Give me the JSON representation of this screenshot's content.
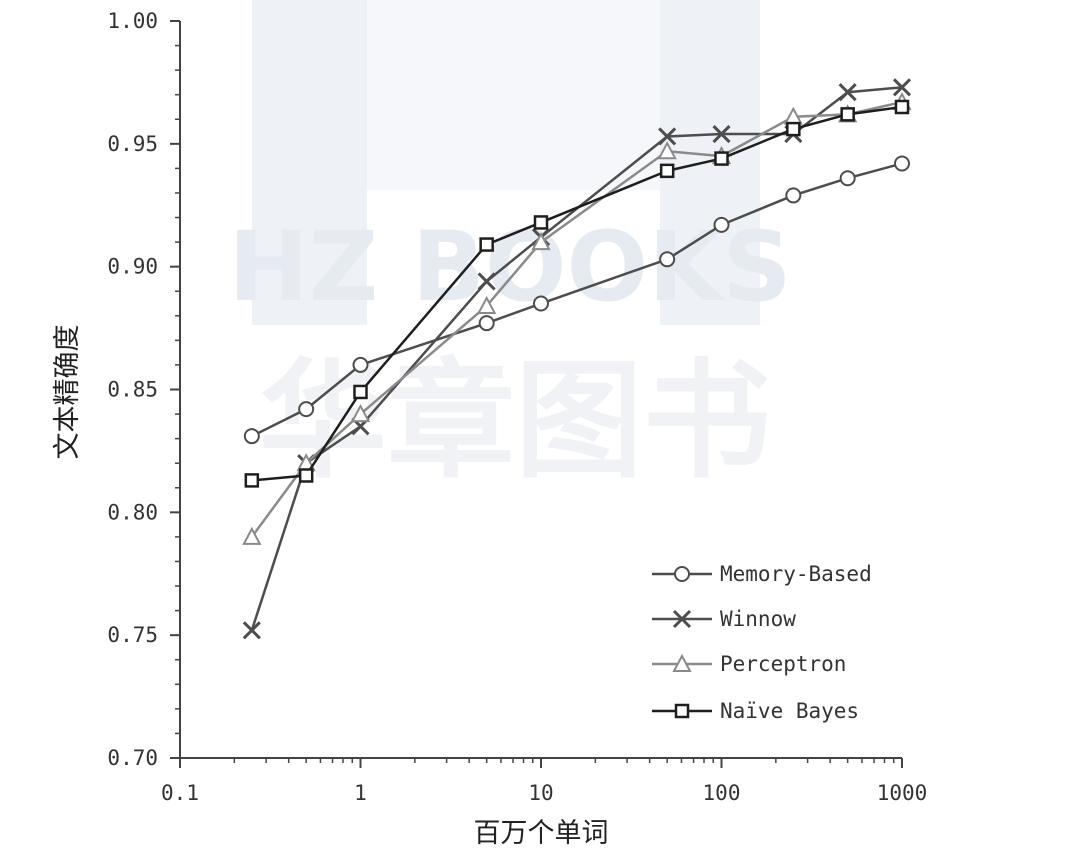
{
  "chart_data": {
    "type": "line",
    "xscale": "log",
    "xlabel": "百万个单词",
    "ylabel": "文本精确度",
    "xlim": [
      0.1,
      1000
    ],
    "ylim": [
      0.7,
      1.0
    ],
    "xticks": [
      {
        "value": 0.1,
        "label": "0.1"
      },
      {
        "value": 1,
        "label": "1"
      },
      {
        "value": 10,
        "label": "10"
      },
      {
        "value": 100,
        "label": "100"
      },
      {
        "value": 1000,
        "label": "1000"
      }
    ],
    "yticks": [
      {
        "value": 0.7,
        "label": "0.70"
      },
      {
        "value": 0.75,
        "label": "0.75"
      },
      {
        "value": 0.8,
        "label": "0.80"
      },
      {
        "value": 0.85,
        "label": "0.85"
      },
      {
        "value": 0.9,
        "label": "0.90"
      },
      {
        "value": 0.95,
        "label": "0.95"
      },
      {
        "value": 1.0,
        "label": "1.00"
      }
    ],
    "grid": false,
    "legend_position": "bottom-right",
    "series": [
      {
        "name": "Memory-Based",
        "marker": "circle",
        "color": "#4d4d4d",
        "x": [
          0.25,
          0.5,
          1,
          5,
          10,
          50,
          100,
          250,
          500,
          1000
        ],
        "y": [
          0.831,
          0.842,
          0.86,
          0.877,
          0.885,
          0.903,
          0.917,
          0.929,
          0.936,
          0.942
        ]
      },
      {
        "name": "Winnow",
        "marker": "x",
        "color": "#4d4d4d",
        "x": [
          0.25,
          0.5,
          1,
          5,
          10,
          50,
          100,
          250,
          500,
          1000
        ],
        "y": [
          0.752,
          0.82,
          0.835,
          0.894,
          0.912,
          0.953,
          0.954,
          0.954,
          0.971,
          0.973
        ]
      },
      {
        "name": "Perceptron",
        "marker": "triangle",
        "color": "#8a8a8a",
        "x": [
          0.25,
          0.5,
          1,
          5,
          10,
          50,
          100,
          250,
          500,
          1000
        ],
        "y": [
          0.79,
          0.82,
          0.84,
          0.884,
          0.91,
          0.947,
          0.945,
          0.961,
          0.962,
          0.967
        ]
      },
      {
        "name": "Naïve Bayes",
        "marker": "square",
        "color": "#1e1e1e",
        "x": [
          0.25,
          0.5,
          1,
          5,
          10,
          50,
          100,
          250,
          500,
          1000
        ],
        "y": [
          0.813,
          0.815,
          0.849,
          0.909,
          0.918,
          0.939,
          0.944,
          0.956,
          0.962,
          0.965
        ]
      }
    ]
  },
  "watermark": {
    "latin": "HZ BOOKS",
    "chinese": "华章图书",
    "color": "#eef2f7"
  }
}
